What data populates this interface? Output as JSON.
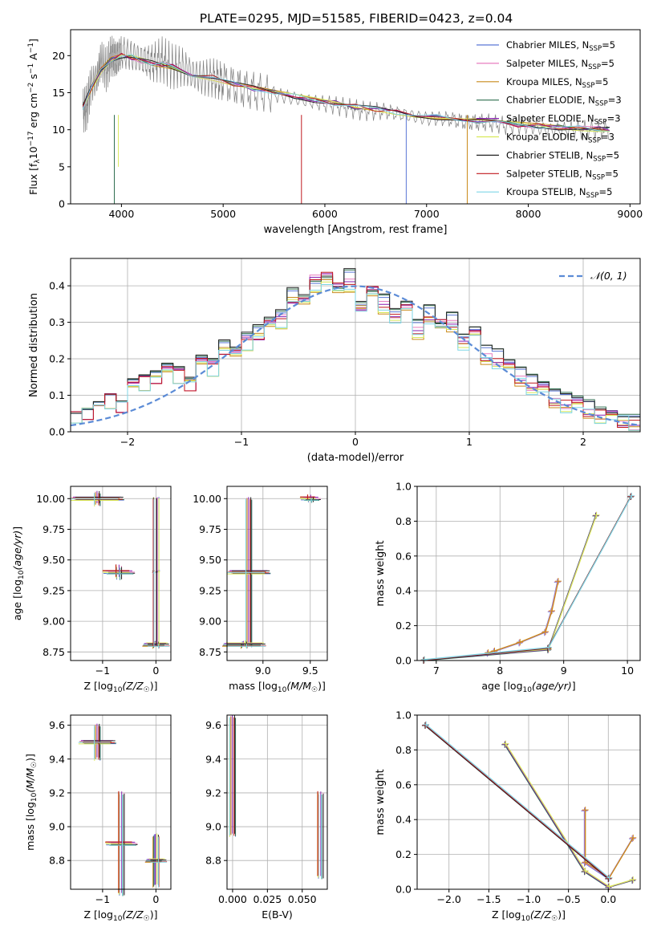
{
  "figure_title": "PLATE=0295, MJD=51585, FIBERID=0423, z=0.04",
  "colors": {
    "series": [
      "#5a78d6",
      "#e77cbf",
      "#c98a1a",
      "#2e6e4f",
      "#8a1fb0",
      "#d8e85a",
      "#222222",
      "#c0181e",
      "#7fd6e6"
    ],
    "grid": "#b0b0b0",
    "data_spectrum": "#808080",
    "normal_curve": "#5b8bd6"
  },
  "chart_data": [
    {
      "id": "spectrum",
      "type": "line",
      "title": "PLATE=0295, MJD=51585, FIBERID=0423, z=0.04",
      "xlabel": "wavelength [Angstrom, rest frame]",
      "ylabel": "Flux [f_λ 10^-17 erg cm^-2 s^-1 A^-1]",
      "xlim": [
        3500,
        9100
      ],
      "ylim": [
        0,
        23.5
      ],
      "xticks": [
        "4000",
        "5000",
        "6000",
        "7000",
        "8000",
        "9000"
      ],
      "yticks": [
        "0",
        "5",
        "10",
        "15",
        "20"
      ],
      "grid": false,
      "legend_position": "upper-right",
      "data_trace": {
        "x": [
          3620,
          3660,
          3700,
          3760,
          3800,
          3850,
          3900,
          3950,
          4000,
          4100,
          4200,
          4300,
          4400,
          4500,
          4600,
          4700,
          4800,
          4900,
          5000,
          5200,
          5400,
          5600,
          5800,
          6000,
          6200,
          6400,
          6600,
          6800,
          7000,
          7200,
          7400,
          7600,
          7800,
          8000,
          8200,
          8400,
          8600,
          8800
        ],
        "y": [
          12.5,
          13.0,
          16.0,
          17.0,
          19.5,
          18.0,
          20.0,
          19.5,
          20.5,
          20.0,
          19.5,
          19.0,
          19.5,
          18.5,
          18.5,
          17.5,
          17.0,
          17.0,
          16.5,
          15.5,
          15.0,
          14.5,
          14.0,
          13.5,
          13.0,
          12.5,
          12.5,
          12.0,
          11.5,
          11.5,
          11.0,
          11.0,
          10.5,
          10.5,
          10.0,
          10.0,
          10.0,
          10.0
        ]
      },
      "model_trace": {
        "x": [
          3620,
          3700,
          3800,
          3900,
          4000,
          4100,
          4200,
          4300,
          4400,
          4500,
          4700,
          4900,
          5100,
          5300,
          5500,
          5700,
          5900,
          6100,
          6300,
          6500,
          6700,
          6900,
          7100,
          7300,
          7500,
          7700,
          7900,
          8100,
          8300,
          8500,
          8700,
          8800
        ],
        "y": [
          13.0,
          15.5,
          18.0,
          19.5,
          20.0,
          19.8,
          19.3,
          19.0,
          18.8,
          18.5,
          17.5,
          17.0,
          16.2,
          15.6,
          15.0,
          14.5,
          14.0,
          13.6,
          13.1,
          12.8,
          12.4,
          12.0,
          11.7,
          11.4,
          11.2,
          10.9,
          10.7,
          10.5,
          10.3,
          10.2,
          10.1,
          10.0
        ]
      },
      "series": [
        {
          "name": "Chabrier MILES, N_SSP=5",
          "label": "Chabrier MILES, N",
          "sub": "SSP",
          "suffix": "=5"
        },
        {
          "name": "Salpeter MILES, N_SSP=5",
          "label": "Salpeter MILES, N",
          "sub": "SSP",
          "suffix": "=5"
        },
        {
          "name": "Kroupa MILES, N_SSP=5",
          "label": "Kroupa MILES, N",
          "sub": "SSP",
          "suffix": "=5"
        },
        {
          "name": "Chabrier ELODIE, N_SSP=3",
          "label": "Chabrier ELODIE, N",
          "sub": "SSP",
          "suffix": "=3"
        },
        {
          "name": "Salpeter ELODIE, N_SSP=3",
          "label": "Salpeter ELODIE, N",
          "sub": "SSP",
          "suffix": "=3"
        },
        {
          "name": "Kroupa ELODIE, N_SSP=3",
          "label": "Kroupa ELODIE, N",
          "sub": "SSP",
          "suffix": "=3"
        },
        {
          "name": "Chabrier STELIB, N_SSP=5",
          "label": "Chabrier STELIB, N",
          "sub": "SSP",
          "suffix": "=5"
        },
        {
          "name": "Salpeter STELIB, N_SSP=5",
          "label": "Salpeter STELIB, N",
          "sub": "SSP",
          "suffix": "=5"
        },
        {
          "name": "Kroupa STELIB, N_SSP=5",
          "label": "Kroupa STELIB, N",
          "sub": "SSP",
          "suffix": "=5"
        }
      ]
    },
    {
      "id": "residuals",
      "type": "histogram",
      "xlabel": "(data-model)/error",
      "ylabel": "Normed distribution",
      "xlim": [
        -2.5,
        2.5
      ],
      "ylim": [
        0,
        0.475
      ],
      "xticks": [
        "−2",
        "−1",
        "0",
        "1",
        "2"
      ],
      "yticks": [
        "0.0",
        "0.1",
        "0.2",
        "0.3",
        "0.4"
      ],
      "grid": true,
      "legend_position": "upper-right",
      "normal_label": "𝒩(0, 1)",
      "bin_edges_range": [
        -2.5,
        2.5
      ],
      "histograms": [
        [
          0.05,
          0.06,
          0.08,
          0.1,
          0.08,
          0.14,
          0.15,
          0.16,
          0.18,
          0.17,
          0.14,
          0.2,
          0.19,
          0.24,
          0.22,
          0.26,
          0.28,
          0.3,
          0.32,
          0.38,
          0.36,
          0.4,
          0.41,
          0.38,
          0.43,
          0.34,
          0.37,
          0.36,
          0.32,
          0.34,
          0.29,
          0.33,
          0.28,
          0.31,
          0.25,
          0.27,
          0.22,
          0.21,
          0.18,
          0.16,
          0.14,
          0.12,
          0.1,
          0.09,
          0.08,
          0.07,
          0.05,
          0.04,
          0.03,
          0.03
        ],
        [
          0.04,
          0.05,
          0.07,
          0.09,
          0.07,
          0.13,
          0.14,
          0.15,
          0.17,
          0.16,
          0.13,
          0.19,
          0.18,
          0.23,
          0.21,
          0.25,
          0.27,
          0.29,
          0.31,
          0.37,
          0.35,
          0.42,
          0.45,
          0.39,
          0.41,
          0.35,
          0.38,
          0.35,
          0.33,
          0.33,
          0.28,
          0.32,
          0.29,
          0.3,
          0.26,
          0.26,
          0.21,
          0.2,
          0.17,
          0.15,
          0.13,
          0.11,
          0.09,
          0.08,
          0.07,
          0.06,
          0.05,
          0.04,
          0.03,
          0.02
        ],
        [
          0.04,
          0.05,
          0.07,
          0.08,
          0.07,
          0.12,
          0.13,
          0.14,
          0.16,
          0.15,
          0.13,
          0.18,
          0.17,
          0.22,
          0.2,
          0.24,
          0.26,
          0.28,
          0.3,
          0.36,
          0.34,
          0.4,
          0.41,
          0.37,
          0.4,
          0.34,
          0.36,
          0.34,
          0.31,
          0.32,
          0.27,
          0.31,
          0.27,
          0.29,
          0.24,
          0.25,
          0.2,
          0.19,
          0.16,
          0.14,
          0.12,
          0.1,
          0.08,
          0.07,
          0.06,
          0.05,
          0.04,
          0.03,
          0.03,
          0.02
        ]
      ],
      "normal_curve": {
        "mean": 0,
        "sd": 1
      }
    },
    {
      "id": "age-vs-Z",
      "type": "errorbar",
      "xlabel": "Z [log10(Z/Z☉)]",
      "ylabel": "age [log10(age/yr)]",
      "xlim": [
        -1.6,
        0.28
      ],
      "ylim": [
        8.68,
        10.1
      ],
      "xticks": [
        "−1",
        "0"
      ],
      "yticks": [
        "8.75",
        "9.00",
        "9.25",
        "9.50",
        "9.75",
        "10.00"
      ],
      "grid": true,
      "points": [
        {
          "x": -1.1,
          "y": 10.0,
          "xerr": 0.45,
          "yerr": 0.05
        },
        {
          "x": -0.7,
          "y": 9.4,
          "xerr": 0.25,
          "yerr": 0.05
        },
        {
          "x": 0.0,
          "y": 8.81,
          "xerr": 0.2,
          "yerr": 0.02
        },
        {
          "x": 0.0,
          "y": 9.4,
          "xerr": 0.02,
          "yerr": 0.6
        }
      ]
    },
    {
      "id": "age-vs-mass",
      "type": "errorbar",
      "xlabel": "mass [log10(M/M☉)]",
      "ylabel": "",
      "xlim": [
        8.62,
        9.68
      ],
      "ylim": [
        8.68,
        10.1
      ],
      "xticks": [
        "8.5",
        "9.0",
        "9.5"
      ],
      "yticks": [
        "8.75",
        "9.00",
        "9.25",
        "9.50",
        "9.75",
        "10.00"
      ],
      "grid": true,
      "points": [
        {
          "x": 8.85,
          "y": 9.4,
          "xerr": 0.2,
          "yerr": 0.6
        },
        {
          "x": 9.5,
          "y": 10.0,
          "xerr": 0.08,
          "yerr": 0.02
        },
        {
          "x": 8.8,
          "y": 8.81,
          "xerr": 0.2,
          "yerr": 0.02
        }
      ]
    },
    {
      "id": "weight-vs-age",
      "type": "line",
      "xlabel": "age [log10(age/yr)]",
      "ylabel": "mass weight",
      "xlim": [
        6.7,
        10.2
      ],
      "ylim": [
        0,
        1.0
      ],
      "xticks": [
        "7",
        "8",
        "9",
        "10"
      ],
      "yticks": [
        "0.0",
        "0.2",
        "0.4",
        "0.6",
        "0.8",
        "1.0"
      ],
      "grid": true,
      "series": [
        {
          "x": [
            7.8,
            7.9,
            8.3,
            8.7,
            8.8,
            8.9
          ],
          "y": [
            0.04,
            0.05,
            0.1,
            0.16,
            0.28,
            0.45
          ]
        },
        {
          "x": [
            6.8,
            8.75,
            9.5
          ],
          "y": [
            0.0,
            0.06,
            0.83
          ]
        },
        {
          "x": [
            6.8,
            8.75,
            10.05
          ],
          "y": [
            0.0,
            0.07,
            0.94
          ]
        }
      ]
    },
    {
      "id": "mass-vs-Z",
      "type": "errorbar",
      "xlabel": "Z [log10(Z/Z☉)]",
      "ylabel": "mass [log10(M/M☉)]",
      "xlim": [
        -1.6,
        0.28
      ],
      "ylim": [
        8.63,
        9.66
      ],
      "xticks": [
        "−1",
        "0"
      ],
      "yticks": [
        "8.8",
        "9.0",
        "9.2",
        "9.4",
        "9.6"
      ],
      "grid": true,
      "points": [
        {
          "x": -1.1,
          "y": 9.5,
          "xerr": 0.3,
          "yerr": 0.1
        },
        {
          "x": -0.65,
          "y": 8.9,
          "xerr": 0.25,
          "yerr": 0.3
        },
        {
          "x": 0.0,
          "y": 8.8,
          "xerr": 0.15,
          "yerr": 0.15
        }
      ]
    },
    {
      "id": "mass-vs-ebv",
      "type": "errorbar",
      "xlabel": "E(B-V)",
      "ylabel": "",
      "xlim": [
        -0.004,
        0.068
      ],
      "ylim": [
        8.63,
        9.66
      ],
      "xticks": [
        "0.000",
        "0.025",
        "0.050"
      ],
      "yticks": [
        "8.8",
        "9.0",
        "9.2",
        "9.4",
        "9.6"
      ],
      "grid": true,
      "points": [
        {
          "x": 0.0,
          "y": 9.3,
          "xerr": 0.0,
          "yerr": 0.35
        },
        {
          "x": 0.063,
          "y": 8.95,
          "xerr": 0.0,
          "yerr": 0.25
        }
      ]
    },
    {
      "id": "weight-vs-Z",
      "type": "line",
      "xlabel": "Z [log10(Z/Z☉)]",
      "ylabel": "mass weight",
      "xlim": [
        -2.4,
        0.4
      ],
      "ylim": [
        0,
        1.0
      ],
      "xticks": [
        "−2.0",
        "−1.5",
        "−1.0",
        "−0.5",
        "0.0"
      ],
      "yticks": [
        "0.0",
        "0.2",
        "0.4",
        "0.6",
        "0.8",
        "1.0"
      ],
      "grid": true,
      "series": [
        {
          "x": [
            -0.3,
            -0.3,
            0.0,
            0.3
          ],
          "y": [
            0.45,
            0.15,
            0.06,
            0.29
          ]
        },
        {
          "x": [
            -1.3,
            -0.3,
            0.0,
            0.3
          ],
          "y": [
            0.83,
            0.1,
            0.01,
            0.05
          ]
        },
        {
          "x": [
            -2.3,
            0.0
          ],
          "y": [
            0.94,
            0.06
          ]
        }
      ]
    }
  ]
}
